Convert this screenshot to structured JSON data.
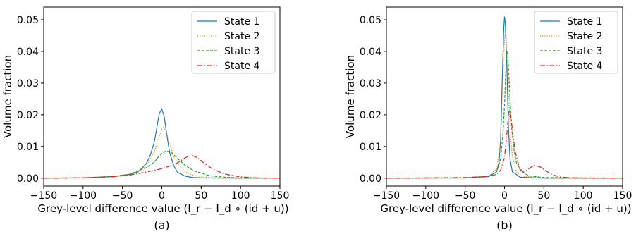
{
  "chart_data": [
    {
      "type": "line",
      "caption": "(a)",
      "xlabel": "Grey-level difference value (I_r − I_d ∘ (id + u))",
      "ylabel": "Volume fraction",
      "xlim": [
        -150,
        150
      ],
      "ylim": [
        -0.0025,
        0.054
      ],
      "xticks": [
        "−150",
        "−100",
        "−50",
        "0",
        "50",
        "100",
        "150"
      ],
      "yticks": [
        "0.00",
        "0.01",
        "0.02",
        "0.03",
        "0.04",
        "0.05"
      ],
      "grid": false,
      "legend_position": "top-right",
      "series": [
        {
          "name": "State 1",
          "color": "#1f77b4",
          "style": "solid",
          "x": [
            -150,
            -100,
            -60,
            -40,
            -30,
            -20,
            -15,
            -10,
            -8,
            -5,
            -3,
            0,
            3,
            5,
            8,
            10,
            15,
            20,
            30,
            40,
            60,
            100,
            150
          ],
          "y": [
            0,
            0.0001,
            0.0005,
            0.0012,
            0.002,
            0.0045,
            0.007,
            0.011,
            0.0135,
            0.018,
            0.0205,
            0.0218,
            0.0195,
            0.016,
            0.011,
            0.008,
            0.004,
            0.0018,
            0.0006,
            0.0002,
            5e-05,
            0,
            0
          ]
        },
        {
          "name": "State 2",
          "color": "#ff7f0e",
          "style": "dotted",
          "x": [
            -150,
            -100,
            -60,
            -40,
            -30,
            -20,
            -10,
            -5,
            0,
            2,
            5,
            10,
            15,
            20,
            30,
            40,
            60,
            100,
            150
          ],
          "y": [
            0,
            0.0001,
            0.0006,
            0.0013,
            0.0022,
            0.004,
            0.008,
            0.012,
            0.0155,
            0.016,
            0.015,
            0.011,
            0.007,
            0.0045,
            0.002,
            0.0009,
            0.0002,
            0,
            0
          ]
        },
        {
          "name": "State 3",
          "color": "#2ca02c",
          "style": "dashed",
          "x": [
            -150,
            -100,
            -60,
            -40,
            -20,
            -10,
            -5,
            0,
            5,
            10,
            15,
            20,
            30,
            40,
            60,
            80,
            100,
            150
          ],
          "y": [
            0,
            0.0001,
            0.0006,
            0.0013,
            0.0033,
            0.005,
            0.0065,
            0.0078,
            0.0085,
            0.0084,
            0.0075,
            0.0062,
            0.004,
            0.0024,
            0.0008,
            0.0003,
            0.0001,
            0
          ]
        },
        {
          "name": "State 4",
          "color": "#d62728",
          "style": "dashdot",
          "x": [
            -150,
            -100,
            -60,
            -40,
            -20,
            0,
            10,
            20,
            30,
            38,
            45,
            55,
            65,
            80,
            100,
            120,
            150
          ],
          "y": [
            0,
            0.0001,
            0.0005,
            0.001,
            0.0019,
            0.003,
            0.0038,
            0.0048,
            0.0065,
            0.0072,
            0.0065,
            0.0045,
            0.0028,
            0.0013,
            0.0004,
            0.0001,
            0
          ]
        }
      ]
    },
    {
      "type": "line",
      "caption": "(b)",
      "xlabel": "Grey-level difference value (I_r − I_d ∘ (id + u))",
      "ylabel": "Volume fraction",
      "xlim": [
        -150,
        150
      ],
      "ylim": [
        -0.0025,
        0.054
      ],
      "xticks": [
        "−150",
        "−100",
        "−50",
        "0",
        "50",
        "100",
        "150"
      ],
      "yticks": [
        "0.00",
        "0.01",
        "0.02",
        "0.03",
        "0.04",
        "0.05"
      ],
      "grid": false,
      "legend_position": "top-right",
      "series": [
        {
          "name": "State 1",
          "color": "#1f77b4",
          "style": "solid",
          "x": [
            -150,
            -50,
            -20,
            -10,
            -7,
            -5,
            -3,
            -1,
            0,
            1,
            3,
            5,
            7,
            10,
            20,
            50,
            150
          ],
          "y": [
            0,
            5e-05,
            0.0005,
            0.002,
            0.005,
            0.012,
            0.03,
            0.047,
            0.051,
            0.049,
            0.035,
            0.016,
            0.006,
            0.002,
            0.0003,
            0,
            0
          ]
        },
        {
          "name": "State 2",
          "color": "#ff7f0e",
          "style": "dotted",
          "x": [
            -150,
            -50,
            -20,
            -10,
            -6,
            -4,
            -2,
            0,
            1,
            2,
            4,
            6,
            8,
            10,
            15,
            20,
            50,
            150
          ],
          "y": [
            0,
            0.0001,
            0.0007,
            0.003,
            0.009,
            0.017,
            0.032,
            0.044,
            0.046,
            0.045,
            0.035,
            0.022,
            0.012,
            0.007,
            0.002,
            0.0007,
            0.0001,
            0
          ]
        },
        {
          "name": "State 3",
          "color": "#2ca02c",
          "style": "dashed",
          "x": [
            -150,
            -50,
            -20,
            -10,
            -5,
            -2,
            0,
            2,
            3,
            4,
            5,
            7,
            9,
            12,
            15,
            20,
            30,
            50,
            150
          ],
          "y": [
            0,
            0.0001,
            0.0006,
            0.002,
            0.006,
            0.014,
            0.023,
            0.036,
            0.04,
            0.039,
            0.035,
            0.025,
            0.016,
            0.009,
            0.005,
            0.0025,
            0.0008,
            0.0002,
            0
          ]
        },
        {
          "name": "State 4",
          "color": "#d62728",
          "style": "dashdot",
          "x": [
            -150,
            -50,
            -20,
            -10,
            -5,
            0,
            3,
            5,
            6,
            7,
            9,
            11,
            14,
            18,
            22,
            27,
            32,
            38,
            45,
            52,
            60,
            70,
            80,
            100,
            150
          ],
          "y": [
            0,
            0.0002,
            0.0006,
            0.0012,
            0.0025,
            0.0065,
            0.014,
            0.02,
            0.0215,
            0.021,
            0.0175,
            0.013,
            0.008,
            0.004,
            0.0022,
            0.0022,
            0.0032,
            0.004,
            0.0036,
            0.0024,
            0.0012,
            0.0004,
            0.0002,
            0,
            0
          ]
        }
      ]
    }
  ]
}
